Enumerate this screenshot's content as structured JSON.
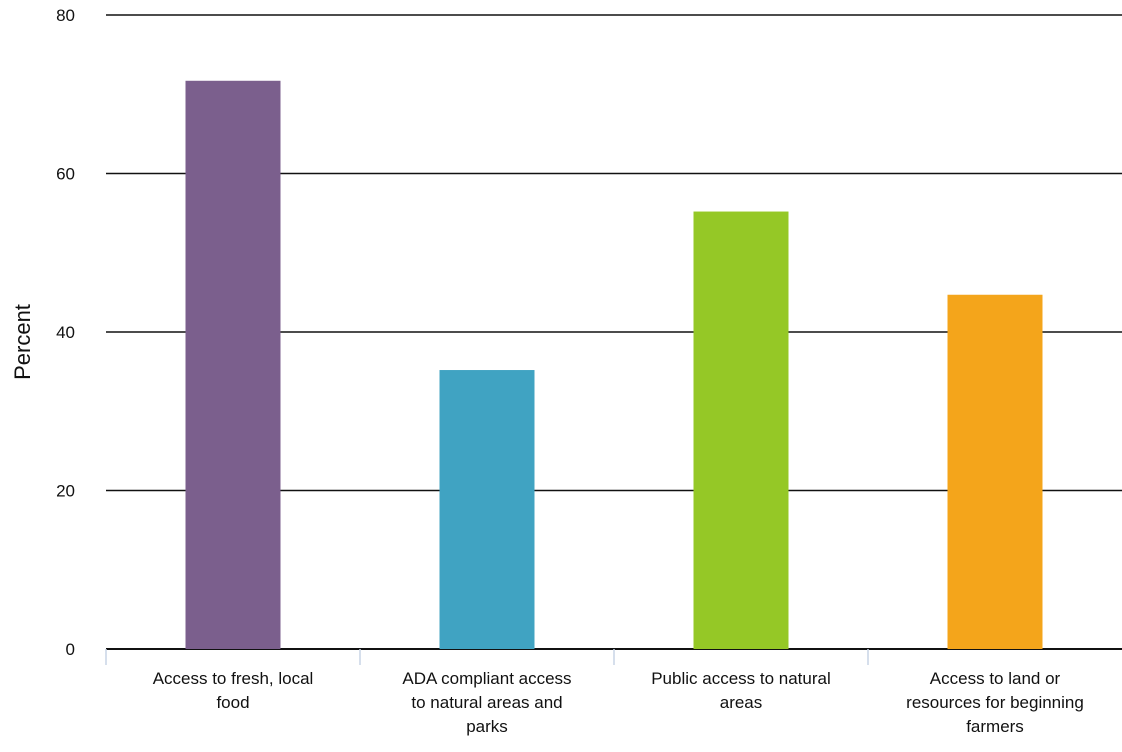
{
  "chart_data": {
    "type": "bar",
    "title": "",
    "xlabel": "",
    "ylabel": "Percent",
    "ylim": [
      0,
      80
    ],
    "yticks": [
      0,
      20,
      40,
      60,
      80
    ],
    "grid": true,
    "legend": "none",
    "categories": [
      [
        "Access to fresh, local",
        "food"
      ],
      [
        "ADA compliant access",
        "to natural areas and",
        "parks"
      ],
      [
        "Public access to natural",
        "areas"
      ],
      [
        "Access to land or",
        "resources for beginning",
        "farmers"
      ]
    ],
    "values": [
      71.7,
      35.2,
      55.2,
      44.7
    ],
    "colors": [
      "#7b5f8d",
      "#40a3c2",
      "#95c826",
      "#f4a51b"
    ]
  }
}
